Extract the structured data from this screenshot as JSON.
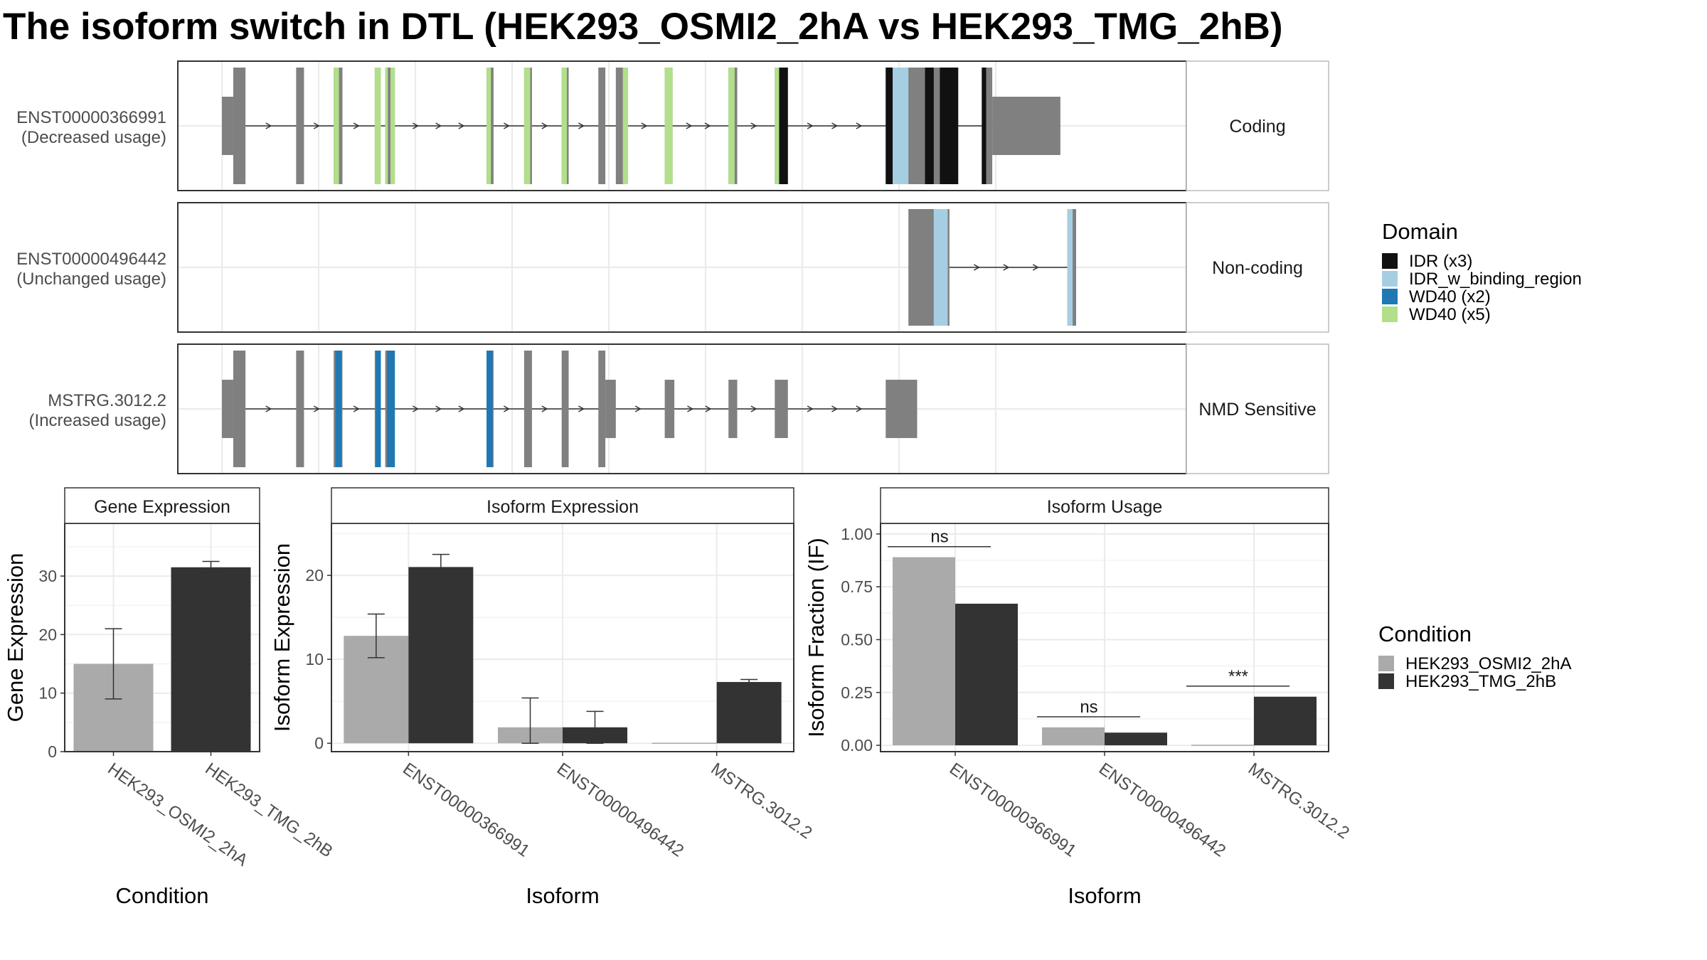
{
  "title": "The isoform switch in DTL (HEK293_OSMI2_2hA vs HEK293_TMG_2hB)",
  "colors": {
    "exon": "#808080",
    "IDR": "#111111",
    "IDR_w_binding_region": "#a6cee3",
    "WD40_x2": "#1f78b4",
    "WD40_x5": "#b2df8a",
    "cond1": "#aaaaaa",
    "cond2": "#333333",
    "panel_border": "#333333",
    "grid": "#ebebeb"
  },
  "transcripts": [
    {
      "id": "ENST00000366991",
      "usage": "(Decreased usage)",
      "category": "Coding",
      "exons": [
        {
          "s": 0.0,
          "e": 0.013,
          "coding": false
        },
        {
          "s": 0.013,
          "e": 0.027,
          "coding": true
        },
        {
          "s": 0.085,
          "e": 0.094,
          "coding": true
        },
        {
          "s": 0.128,
          "e": 0.138,
          "coding": true
        },
        {
          "s": 0.175,
          "e": 0.182,
          "coding": true
        },
        {
          "s": 0.187,
          "e": 0.198,
          "coding": true
        },
        {
          "s": 0.303,
          "e": 0.311,
          "coding": true
        },
        {
          "s": 0.346,
          "e": 0.355,
          "coding": true
        },
        {
          "s": 0.389,
          "e": 0.397,
          "coding": true
        },
        {
          "s": 0.431,
          "e": 0.439,
          "coding": true
        },
        {
          "s": 0.451,
          "e": 0.465,
          "coding": true
        },
        {
          "s": 0.507,
          "e": 0.516,
          "coding": true
        },
        {
          "s": 0.58,
          "e": 0.59,
          "coding": true
        },
        {
          "s": 0.633,
          "e": 0.648,
          "coding": true
        },
        {
          "s": 0.76,
          "e": 0.843,
          "coding": true
        },
        {
          "s": 0.87,
          "e": 0.882,
          "coding": true
        },
        {
          "s": 0.882,
          "e": 0.96,
          "coding": false
        }
      ],
      "domains": [
        {
          "type": "WD40_x5",
          "s": 0.128,
          "e": 0.134
        },
        {
          "type": "WD40_x5",
          "s": 0.175,
          "e": 0.182
        },
        {
          "type": "WD40_x5",
          "s": 0.187,
          "e": 0.19
        },
        {
          "type": "WD40_x5",
          "s": 0.193,
          "e": 0.198
        },
        {
          "type": "WD40_x5",
          "s": 0.303,
          "e": 0.308
        },
        {
          "type": "WD40_x5",
          "s": 0.346,
          "e": 0.353
        },
        {
          "type": "WD40_x5",
          "s": 0.389,
          "e": 0.395
        },
        {
          "type": "WD40_x5",
          "s": 0.459,
          "e": 0.465
        },
        {
          "type": "WD40_x5",
          "s": 0.507,
          "e": 0.516
        },
        {
          "type": "WD40_x5",
          "s": 0.58,
          "e": 0.587
        },
        {
          "type": "WD40_x5",
          "s": 0.633,
          "e": 0.638
        },
        {
          "type": "IDR",
          "s": 0.638,
          "e": 0.648
        },
        {
          "type": "IDR",
          "s": 0.76,
          "e": 0.768
        },
        {
          "type": "IDR_w_binding_region",
          "s": 0.768,
          "e": 0.786
        },
        {
          "type": "IDR",
          "s": 0.805,
          "e": 0.815
        },
        {
          "type": "IDR",
          "s": 0.822,
          "e": 0.843
        },
        {
          "type": "IDR",
          "s": 0.87,
          "e": 0.875
        }
      ]
    },
    {
      "id": "ENST00000496442",
      "usage": "(Unchanged usage)",
      "category": "Non-coding",
      "exons": [
        {
          "s": 0.786,
          "e": 0.833,
          "coding": true
        },
        {
          "s": 0.968,
          "e": 0.978,
          "coding": true
        }
      ],
      "domains": [
        {
          "type": "IDR_w_binding_region",
          "s": 0.815,
          "e": 0.831
        },
        {
          "type": "IDR_w_binding_region",
          "s": 0.968,
          "e": 0.974
        }
      ]
    },
    {
      "id": "MSTRG.3012.2",
      "usage": "(Increased usage)",
      "category": "NMD Sensitive",
      "exons": [
        {
          "s": 0.0,
          "e": 0.013,
          "coding": false
        },
        {
          "s": 0.013,
          "e": 0.027,
          "coding": true
        },
        {
          "s": 0.085,
          "e": 0.094,
          "coding": true
        },
        {
          "s": 0.128,
          "e": 0.138,
          "coding": true
        },
        {
          "s": 0.175,
          "e": 0.182,
          "coding": true
        },
        {
          "s": 0.187,
          "e": 0.198,
          "coding": true
        },
        {
          "s": 0.303,
          "e": 0.311,
          "coding": true
        },
        {
          "s": 0.346,
          "e": 0.355,
          "coding": true
        },
        {
          "s": 0.389,
          "e": 0.397,
          "coding": true
        },
        {
          "s": 0.431,
          "e": 0.439,
          "coding": true
        },
        {
          "s": 0.439,
          "e": 0.451,
          "coding": false
        },
        {
          "s": 0.507,
          "e": 0.518,
          "coding": false
        },
        {
          "s": 0.58,
          "e": 0.59,
          "coding": false
        },
        {
          "s": 0.633,
          "e": 0.648,
          "coding": false
        },
        {
          "s": 0.76,
          "e": 0.796,
          "coding": false
        }
      ],
      "domains": [
        {
          "type": "WD40_x2",
          "s": 0.13,
          "e": 0.137
        },
        {
          "type": "WD40_x2",
          "s": 0.176,
          "e": 0.182
        },
        {
          "type": "WD40_x2",
          "s": 0.189,
          "e": 0.198
        },
        {
          "type": "WD40_x2",
          "s": 0.303,
          "e": 0.31
        }
      ]
    }
  ],
  "domain_legend": {
    "title": "Domain",
    "items": [
      {
        "key": "IDR",
        "label": "IDR (x3)"
      },
      {
        "key": "IDR_w_binding_region",
        "label": "IDR_w_binding_region"
      },
      {
        "key": "WD40_x2",
        "label": "WD40 (x2)"
      },
      {
        "key": "WD40_x5",
        "label": "WD40 (x5)"
      }
    ]
  },
  "condition_legend": {
    "title": "Condition",
    "items": [
      {
        "key": "cond1",
        "label": "HEK293_OSMI2_2hA"
      },
      {
        "key": "cond2",
        "label": "HEK293_TMG_2hB"
      }
    ]
  },
  "chart_data": [
    {
      "type": "bar",
      "title": "Gene Expression",
      "xlabel": "Condition",
      "ylabel": "Gene Expression",
      "ylim": [
        0,
        39
      ],
      "yticks": [
        0,
        10,
        20,
        30
      ],
      "categories": [
        "HEK293_OSMI2_2hA",
        "HEK293_TMG_2hB"
      ],
      "series": [
        {
          "name": "HEK293_OSMI2_2hA",
          "values": [
            15.0,
            null
          ],
          "error_low": [
            9.0,
            null
          ],
          "error_high": [
            21.0,
            null
          ]
        },
        {
          "name": "HEK293_TMG_2hB",
          "values": [
            null,
            31.5
          ],
          "error_low": [
            null,
            30.5
          ],
          "error_high": [
            null,
            32.5
          ]
        }
      ]
    },
    {
      "type": "bar",
      "title": "Isoform Expression",
      "xlabel": "Isoform",
      "ylabel": "Isoform Expression",
      "ylim": [
        -1,
        26.2
      ],
      "yticks": [
        0,
        10,
        20
      ],
      "categories": [
        "ENST00000366991",
        "ENST00000496442",
        "MSTRG.3012.2"
      ],
      "series": [
        {
          "name": "HEK293_OSMI2_2hA",
          "values": [
            12.8,
            1.9,
            0.0
          ],
          "error_low": [
            10.2,
            0.0,
            0.0
          ],
          "error_high": [
            15.4,
            5.4,
            0.0
          ]
        },
        {
          "name": "HEK293_TMG_2hB",
          "values": [
            21.0,
            1.9,
            7.3
          ],
          "error_low": [
            19.6,
            0.0,
            7.0
          ],
          "error_high": [
            22.5,
            3.8,
            7.6
          ]
        }
      ]
    },
    {
      "type": "bar",
      "title": "Isoform Usage",
      "xlabel": "Isoform",
      "ylabel": "Isoform Fraction (IF)",
      "ylim": [
        -0.03,
        1.05
      ],
      "yticks": [
        0.0,
        0.25,
        0.5,
        0.75,
        1.0
      ],
      "ytick_labels": [
        "0.00",
        "0.25",
        "0.50",
        "0.75",
        "1.00"
      ],
      "categories": [
        "ENST00000366991",
        "ENST00000496442",
        "MSTRG.3012.2"
      ],
      "series": [
        {
          "name": "HEK293_OSMI2_2hA",
          "values": [
            0.89,
            0.085,
            0.0
          ]
        },
        {
          "name": "HEK293_TMG_2hB",
          "values": [
            0.67,
            0.06,
            0.23
          ]
        }
      ],
      "annotations": [
        {
          "category": 0,
          "text": "ns",
          "y": 0.94
        },
        {
          "category": 1,
          "text": "ns",
          "y": 0.135
        },
        {
          "category": 2,
          "text": "***",
          "y": 0.28
        }
      ]
    }
  ]
}
